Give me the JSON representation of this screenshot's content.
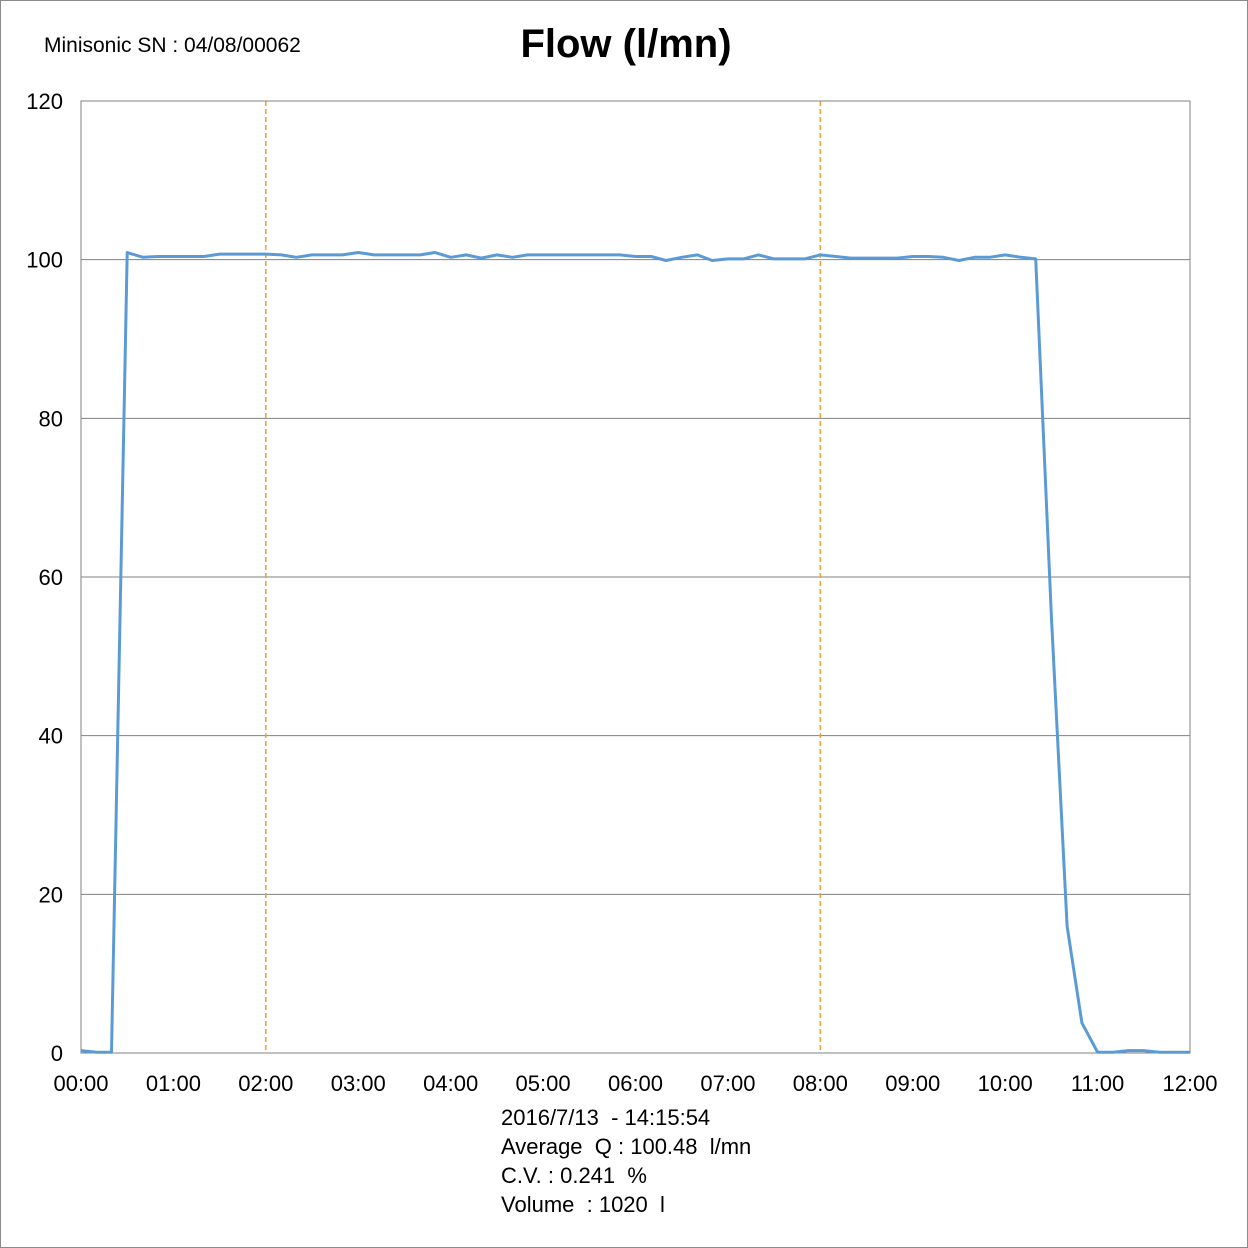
{
  "serial_text": "Minisonic SN : 04/08/00062",
  "chart_data": {
    "type": "line",
    "title": "Flow (l/mn)",
    "xlabel": "",
    "ylabel": "",
    "x_unit": "minutes",
    "xlim": [
      0,
      12
    ],
    "ylim": [
      0,
      120
    ],
    "y_ticks": [
      0,
      20,
      40,
      60,
      80,
      100,
      120
    ],
    "x_ticks": [
      "00:00",
      "01:00",
      "02:00",
      "03:00",
      "04:00",
      "05:00",
      "06:00",
      "07:00",
      "08:00",
      "09:00",
      "10:00",
      "11:00",
      "12:00"
    ],
    "grid": "horizontal",
    "markers_x_min": [
      2,
      8
    ],
    "colors": {
      "series": "#5b9bd5",
      "marker": "#f0a030",
      "grid": "#808080"
    },
    "series": [
      {
        "x": [
          0,
          0.17,
          0.33,
          0.5,
          0.67,
          0.83,
          1.0,
          1.17,
          1.33,
          1.5,
          1.67,
          1.83,
          2.0,
          2.17,
          2.33,
          2.5,
          2.67,
          2.83,
          3.0,
          3.17,
          3.33,
          3.5,
          3.67,
          3.83,
          4.0,
          4.17,
          4.33,
          4.5,
          4.67,
          4.83,
          5.0,
          5.17,
          5.33,
          5.5,
          5.67,
          5.83,
          6.0,
          6.17,
          6.33,
          6.5,
          6.67,
          6.83,
          7.0,
          7.17,
          7.33,
          7.5,
          7.67,
          7.83,
          8.0,
          8.17,
          8.33,
          8.5,
          8.67,
          8.83,
          9.0,
          9.17,
          9.33,
          9.5,
          9.67,
          9.83,
          10.0,
          10.17,
          10.33,
          10.5,
          10.67,
          10.83,
          11.0,
          11.17,
          11.33,
          11.5,
          11.67,
          11.83,
          12.0
        ],
        "values": [
          0.3,
          0.1,
          0.1,
          100.9,
          100.3,
          100.4,
          100.4,
          100.4,
          100.4,
          100.7,
          100.7,
          100.7,
          100.7,
          100.6,
          100.3,
          100.6,
          100.6,
          100.6,
          100.9,
          100.6,
          100.6,
          100.6,
          100.6,
          100.9,
          100.3,
          100.6,
          100.2,
          100.6,
          100.3,
          100.6,
          100.6,
          100.6,
          100.6,
          100.6,
          100.6,
          100.6,
          100.4,
          100.4,
          99.9,
          100.3,
          100.6,
          99.9,
          100.1,
          100.1,
          100.6,
          100.1,
          100.1,
          100.1,
          100.6,
          100.4,
          100.2,
          100.2,
          100.2,
          100.2,
          100.4,
          100.4,
          100.3,
          99.9,
          100.3,
          100.3,
          100.6,
          100.3,
          100.1,
          55,
          16,
          3.8,
          0.1,
          0.1,
          0.3,
          0.3,
          0.1,
          0.1,
          0.1
        ]
      }
    ]
  },
  "info": {
    "datetime": "2016/7/13  - 14:15:54",
    "average": "Average  Q : 100.48  l/mn",
    "cv": "C.V. : 0.241  %",
    "volume": "Volume  : 1020  l"
  }
}
